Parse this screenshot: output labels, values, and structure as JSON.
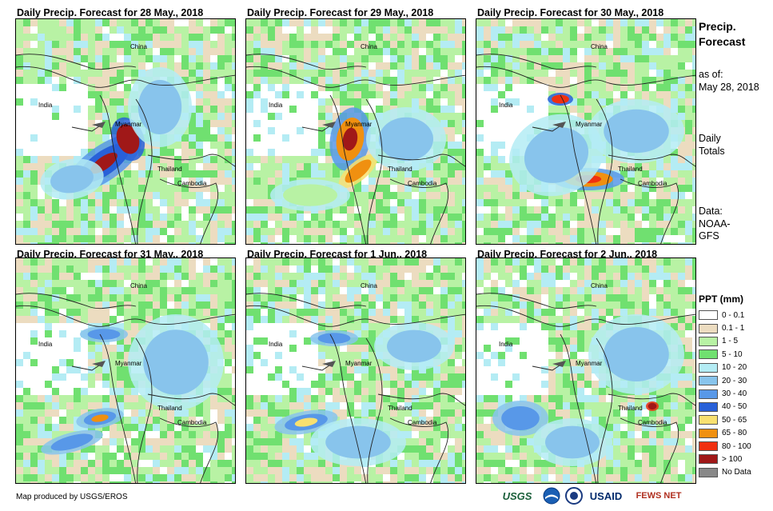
{
  "panels": [
    {
      "title": "Daily Precip. Forecast for 28 May., 2018"
    },
    {
      "title": "Daily Precip. Forecast for 29 May., 2018"
    },
    {
      "title": "Daily Precip. Forecast for 30 May., 2018"
    },
    {
      "title": "Daily Precip. Forecast for 31 May., 2018"
    },
    {
      "title": "Daily Precip. Forecast for 1 Jun., 2018"
    },
    {
      "title": "Daily Precip. Forecast for 2 Jun., 2018"
    }
  ],
  "place_labels": {
    "china": "China",
    "india": "India",
    "myanmar": "Myanmar",
    "thailand": "Thailand",
    "cambodia": "Cambodia"
  },
  "sidebar": {
    "title_line1": "Precip.",
    "title_line2": "Forecast",
    "asof_line1": "as of:",
    "asof_line2": "May 28, 2018",
    "totals_line1": "Daily",
    "totals_line2": "Totals",
    "data_line1": "Data:",
    "data_line2": "NOAA-",
    "data_line3": "GFS"
  },
  "legend": {
    "title": "PPT (mm)",
    "items": [
      {
        "label": "0 - 0.1",
        "color": "#ffffff"
      },
      {
        "label": "0.1 - 1",
        "color": "#ecdcc0"
      },
      {
        "label": "1 - 5",
        "color": "#b8f2a4"
      },
      {
        "label": "5 - 10",
        "color": "#70e070"
      },
      {
        "label": "10 - 20",
        "color": "#b4ecf4"
      },
      {
        "label": "20 - 30",
        "color": "#88c4ec"
      },
      {
        "label": "30 - 40",
        "color": "#5898e8"
      },
      {
        "label": "40 - 50",
        "color": "#2860d8"
      },
      {
        "label": "50 - 65",
        "color": "#f8e070"
      },
      {
        "label": "65 - 80",
        "color": "#f09010"
      },
      {
        "label": "80 - 100",
        "color": "#f03010"
      },
      {
        "label": "> 100",
        "color": "#a01818"
      },
      {
        "label": "No Data",
        "color": "#888888"
      }
    ]
  },
  "footer": {
    "credit": "Map produced by USGS/EROS",
    "logo_usgs": "USGS",
    "logo_usaid": "USAID",
    "logo_fewsnet": "FEWS NET"
  }
}
